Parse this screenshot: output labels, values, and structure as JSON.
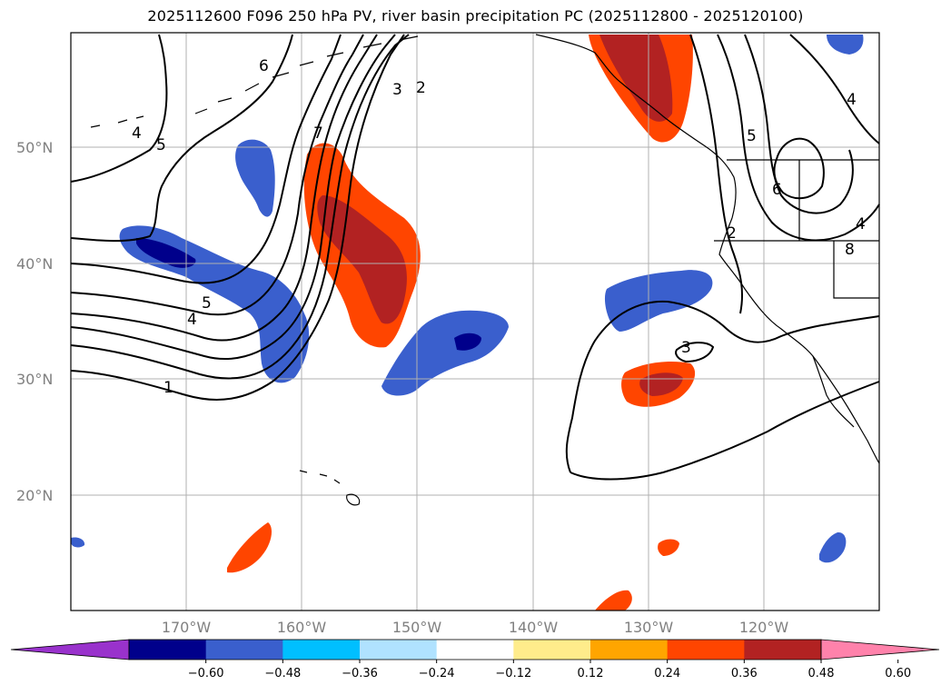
{
  "title": "2025112600 F096 250 hPa PV, river basin precipitation PC (2025112800 - 2025120100)",
  "lat_labels": [
    "50°N",
    "40°N",
    "30°N",
    "20°N"
  ],
  "lon_labels": [
    "170°W",
    "160°W",
    "150°W",
    "140°W",
    "130°W",
    "120°W"
  ],
  "contour_labels": [
    "1",
    "2",
    "3",
    "4",
    "5",
    "6",
    "7",
    "2",
    "3",
    "4",
    "5",
    "6",
    "8",
    "4",
    "5",
    "4"
  ],
  "colorbar": {
    "colors": [
      "#9932cc",
      "#00008b",
      "#3a5fcd",
      "#00bfff",
      "#b0e2ff",
      "#ffffff",
      "#ffec8b",
      "#ffa500",
      "#ff4500",
      "#b22222",
      "#ff82ab"
    ],
    "tick_labels": [
      "−0.60",
      "−0.48",
      "−0.36",
      "−0.24",
      "−0.12",
      "0.12",
      "0.24",
      "0.36",
      "0.48",
      "0.60"
    ]
  },
  "colors": {
    "grid": "#b0b0b0",
    "contour": "#000000",
    "coast": "#000000"
  }
}
